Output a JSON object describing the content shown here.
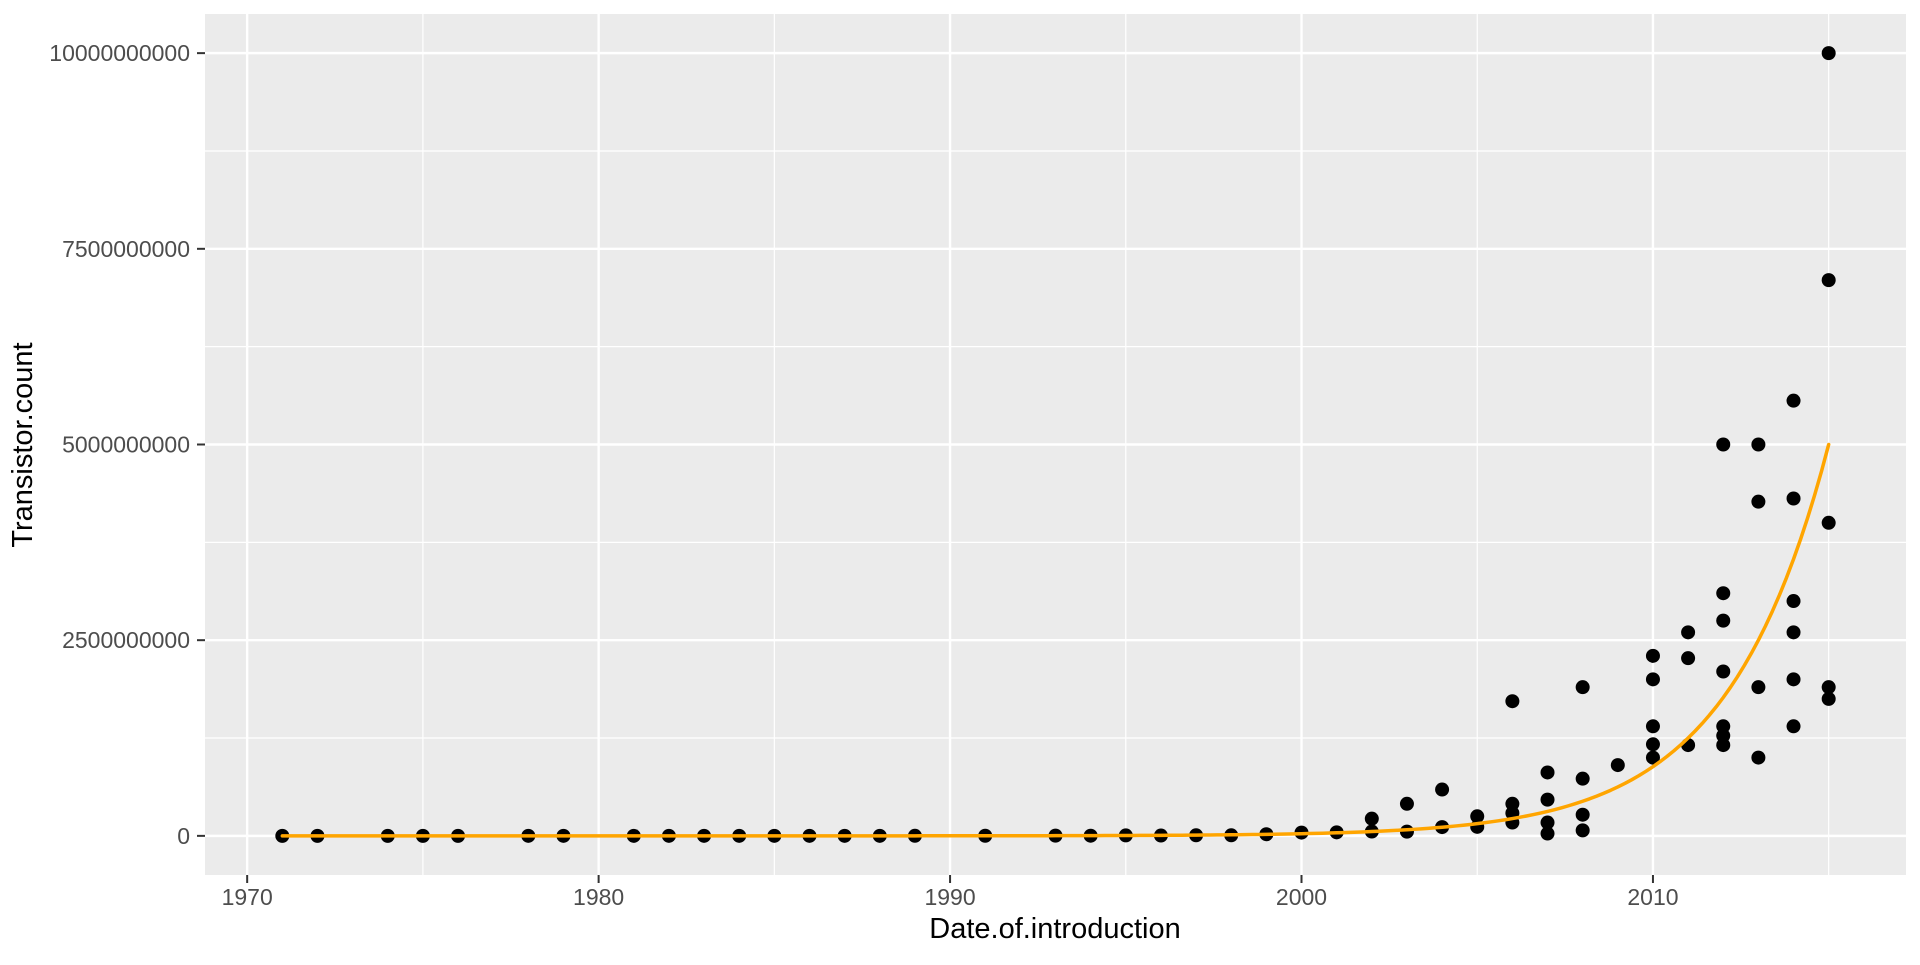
{
  "figure": {
    "background": "#ffffff"
  },
  "panel": {
    "background": "#EBEBEB",
    "grid_major_color": "#FFFFFF",
    "grid_minor_color": "#FFFFFF",
    "tick_mark_color": "#333333"
  },
  "colors": {
    "point": "#000000",
    "trend_line": "#FFA500",
    "tick_label": "#4D4D4D",
    "axis_title": "#000000"
  },
  "chart_data": {
    "type": "scatter",
    "title": "",
    "xlabel": "Date.of.introduction",
    "ylabel": "Transistor.count",
    "legend": "none",
    "grid": true,
    "xlim": [
      1968.8,
      2017.2
    ],
    "ylim": [
      -500000000,
      10500000000
    ],
    "x_ticks": [
      1970,
      1980,
      1990,
      2000,
      2010
    ],
    "x_tick_labels": [
      "1970",
      "1980",
      "1990",
      "2000",
      "2010"
    ],
    "x_minor_ticks": [
      1975,
      1985,
      1995,
      2005,
      2015
    ],
    "y_ticks": [
      0,
      2500000000,
      5000000000,
      7500000000,
      10000000000
    ],
    "y_tick_labels": [
      "0",
      "2500000000",
      "5000000000",
      "7500000000",
      "10000000000"
    ],
    "y_minor_ticks": [
      1250000000,
      3750000000,
      6250000000,
      8750000000
    ],
    "points": [
      [
        1971,
        2300
      ],
      [
        1972,
        3500
      ],
      [
        1974,
        6000
      ],
      [
        1975,
        6500
      ],
      [
        1976,
        8500
      ],
      [
        1978,
        29000
      ],
      [
        1979,
        68000
      ],
      [
        1981,
        100000
      ],
      [
        1982,
        134000
      ],
      [
        1983,
        150000
      ],
      [
        1984,
        190000
      ],
      [
        1985,
        275000
      ],
      [
        1986,
        285000
      ],
      [
        1987,
        250000
      ],
      [
        1988,
        250000
      ],
      [
        1989,
        1180000
      ],
      [
        1991,
        1350000
      ],
      [
        1993,
        3100000
      ],
      [
        1994,
        1800000
      ],
      [
        1995,
        5500000
      ],
      [
        1996,
        4300000
      ],
      [
        1997,
        7500000
      ],
      [
        1998,
        7500000
      ],
      [
        1999,
        21300000
      ],
      [
        2000,
        42000000
      ],
      [
        2001,
        45000000
      ],
      [
        2002,
        55000000
      ],
      [
        2002,
        220000000
      ],
      [
        2003,
        54000000
      ],
      [
        2003,
        410000000
      ],
      [
        2004,
        112000000
      ],
      [
        2004,
        592000000
      ],
      [
        2005,
        115000000
      ],
      [
        2005,
        250000000
      ],
      [
        2006,
        170000000
      ],
      [
        2006,
        291000000
      ],
      [
        2006,
        410000000
      ],
      [
        2006,
        1720000000
      ],
      [
        2007,
        30000000
      ],
      [
        2007,
        170000000
      ],
      [
        2007,
        463000000
      ],
      [
        2007,
        810000000
      ],
      [
        2008,
        70000000
      ],
      [
        2008,
        270000000
      ],
      [
        2008,
        731000000
      ],
      [
        2008,
        1900000000
      ],
      [
        2009,
        904000000
      ],
      [
        2010,
        1000000000
      ],
      [
        2010,
        1170000000
      ],
      [
        2010,
        1400000000
      ],
      [
        2010,
        2000000000
      ],
      [
        2010,
        2300000000
      ],
      [
        2011,
        1160000000
      ],
      [
        2011,
        2270000000
      ],
      [
        2011,
        2600000000
      ],
      [
        2012,
        1160000000
      ],
      [
        2012,
        1280000000
      ],
      [
        2012,
        1400000000
      ],
      [
        2012,
        2100000000
      ],
      [
        2012,
        2750000000
      ],
      [
        2012,
        3100000000
      ],
      [
        2012,
        5000000000
      ],
      [
        2013,
        1000000000
      ],
      [
        2013,
        1900000000
      ],
      [
        2013,
        4270000000
      ],
      [
        2013,
        5000000000
      ],
      [
        2014,
        1400000000
      ],
      [
        2014,
        2000000000
      ],
      [
        2014,
        2600000000
      ],
      [
        2014,
        3000000000
      ],
      [
        2014,
        4310000000
      ],
      [
        2014,
        5560000000
      ],
      [
        2015,
        1750000000
      ],
      [
        2015,
        1900000000
      ],
      [
        2015,
        4000000000
      ],
      [
        2015,
        7100000000
      ],
      [
        2015,
        10000000000
      ]
    ],
    "trend": {
      "type": "exponential",
      "description": "doubling curve: value = anchor_value * 2^((year - anchor_year)/doubling_years)",
      "anchor_year": 2015,
      "anchor_value": 5000000000,
      "doubling_years": 2,
      "x_start": 1971,
      "x_end": 2015.05
    }
  }
}
